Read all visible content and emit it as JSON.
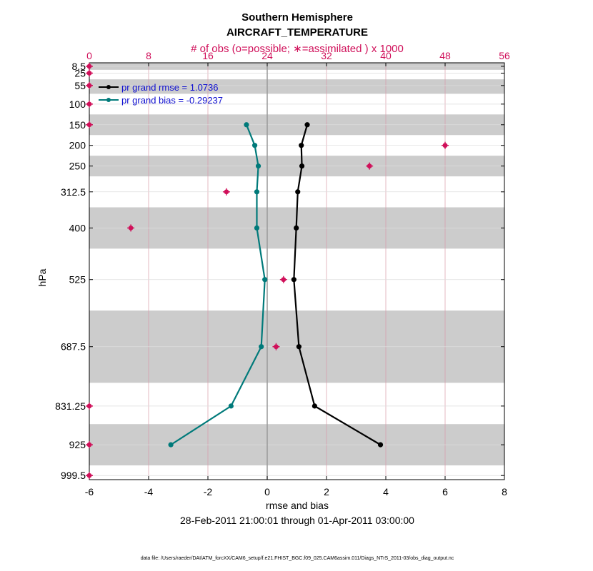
{
  "chart_data": {
    "type": "line",
    "title": "Southern Hemisphere",
    "subtitle": "AIRCRAFT_TEMPERATURE",
    "top_axis_label": "# of obs (o=possible; ∗=assimilated ) x 1000",
    "top_ticks": [
      "0",
      "8",
      "16",
      "24",
      "32",
      "40",
      "48",
      "56"
    ],
    "top_xlim": [
      0,
      56
    ],
    "xlabel": "rmse and bias",
    "x_ticks": [
      "-6",
      "-4",
      "-2",
      "0",
      "2",
      "4",
      "6",
      "8"
    ],
    "xlim": [
      -6,
      8
    ],
    "ylabel": "hPa",
    "levels": [
      "8.5",
      "25",
      "55",
      "100",
      "150",
      "200",
      "250",
      "312.5",
      "400",
      "525",
      "687.5",
      "831.25",
      "925",
      "999.5"
    ],
    "level_values": [
      8.5,
      25,
      55,
      100,
      150,
      200,
      250,
      312.5,
      400,
      525,
      687.5,
      831.25,
      925,
      999.5
    ],
    "shaded_bands_hPa": [
      [
        0,
        17
      ],
      [
        40,
        75
      ],
      [
        125,
        175
      ],
      [
        225,
        275
      ],
      [
        350,
        450
      ],
      [
        600,
        775
      ],
      [
        875,
        975
      ]
    ],
    "series": [
      {
        "name": "pr grand rmse = 1.0736",
        "color": "#000000",
        "levels": [
          150,
          200,
          250,
          312.5,
          400,
          525,
          687.5,
          831.25,
          925
        ],
        "values": [
          1.35,
          1.15,
          1.17,
          1.03,
          0.98,
          0.9,
          1.07,
          1.6,
          3.82
        ]
      },
      {
        "name": "pr grand bias = -0.29237",
        "color": "#007a7a",
        "levels": [
          150,
          200,
          250,
          312.5,
          400,
          525,
          687.5,
          831.25,
          925
        ],
        "values": [
          -0.7,
          -0.42,
          -0.3,
          -0.35,
          -0.35,
          -0.08,
          -0.2,
          -1.22,
          -3.25
        ]
      }
    ],
    "obs_counts": {
      "color": "#d0105a",
      "levels": [
        8.5,
        25,
        55,
        100,
        150,
        200,
        250,
        312.5,
        400,
        525,
        687.5,
        831.25,
        925,
        999.5
      ],
      "values_thousands": [
        0,
        0,
        0,
        0,
        0,
        48,
        37.8,
        18.5,
        5.6,
        26.2,
        25.2,
        0,
        0,
        0
      ]
    },
    "date_range": "28-Feb-2011 21:00:01 through 01-Apr-2011 03:00:00",
    "footer": "data file: /Users/raeder/DAI/ATM_forcXX/CAM6_setup/f.e21.FHIST_BGC.f09_025.CAM6assim.011/Diags_NTrS_2011-03/obs_diag_output.nc"
  }
}
